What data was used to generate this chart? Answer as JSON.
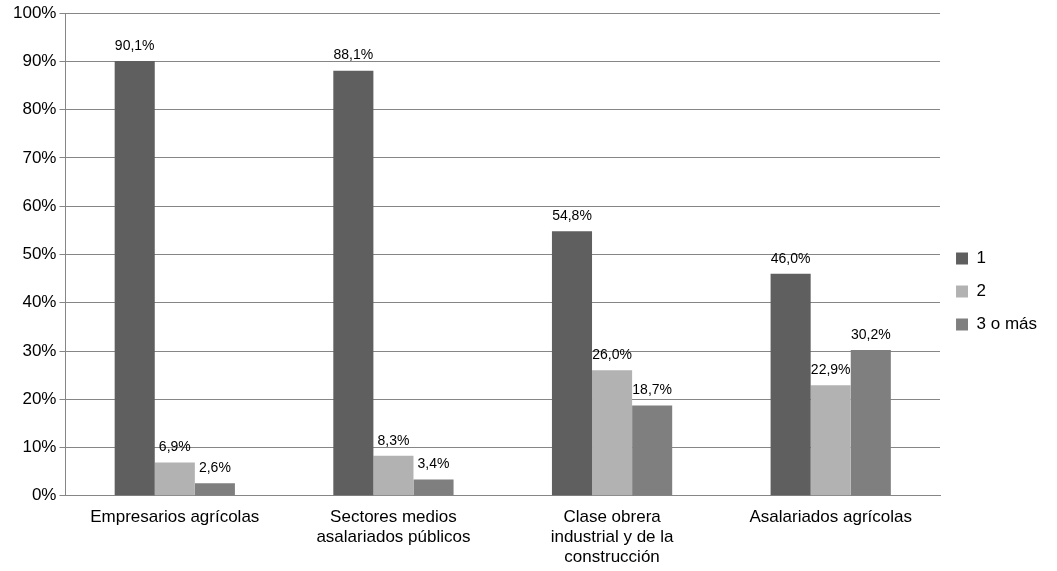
{
  "chart_data": {
    "type": "bar",
    "categories": [
      "Empresarios agrícolas",
      "Sectores medios asalariados públicos",
      "Clase obrera industrial y de la construcción",
      "Asalariados agrícolas"
    ],
    "series": [
      {
        "name": "1",
        "color": "#5f5f5f",
        "values": [
          90.1,
          88.1,
          54.8,
          46.0
        ],
        "value_labels": [
          "90,1%",
          "88,1%",
          "54,8%",
          "46,0%"
        ]
      },
      {
        "name": "2",
        "color": "#b2b2b2",
        "values": [
          6.9,
          8.3,
          26.0,
          22.9
        ],
        "value_labels": [
          "6,9%",
          "8,3%",
          "26,0%",
          "22,9%"
        ]
      },
      {
        "name": "3 o más",
        "color": "#7f7f7f",
        "values": [
          2.6,
          3.4,
          18.7,
          30.2
        ],
        "value_labels": [
          "2,6%",
          "3,4%",
          "18,7%",
          "30,2%"
        ]
      }
    ],
    "ylim": [
      0,
      100
    ],
    "yticks": [
      {
        "value": 0,
        "label": "0%"
      },
      {
        "value": 10,
        "label": "10%"
      },
      {
        "value": 20,
        "label": "20%"
      },
      {
        "value": 30,
        "label": "30%"
      },
      {
        "value": 40,
        "label": "40%"
      },
      {
        "value": 50,
        "label": "50%"
      },
      {
        "value": 60,
        "label": "60%"
      },
      {
        "value": 70,
        "label": "70%"
      },
      {
        "value": 80,
        "label": "80%"
      },
      {
        "value": 90,
        "label": "90%"
      },
      {
        "value": 100,
        "label": "100%"
      }
    ],
    "grid": "y",
    "legend": "right"
  }
}
